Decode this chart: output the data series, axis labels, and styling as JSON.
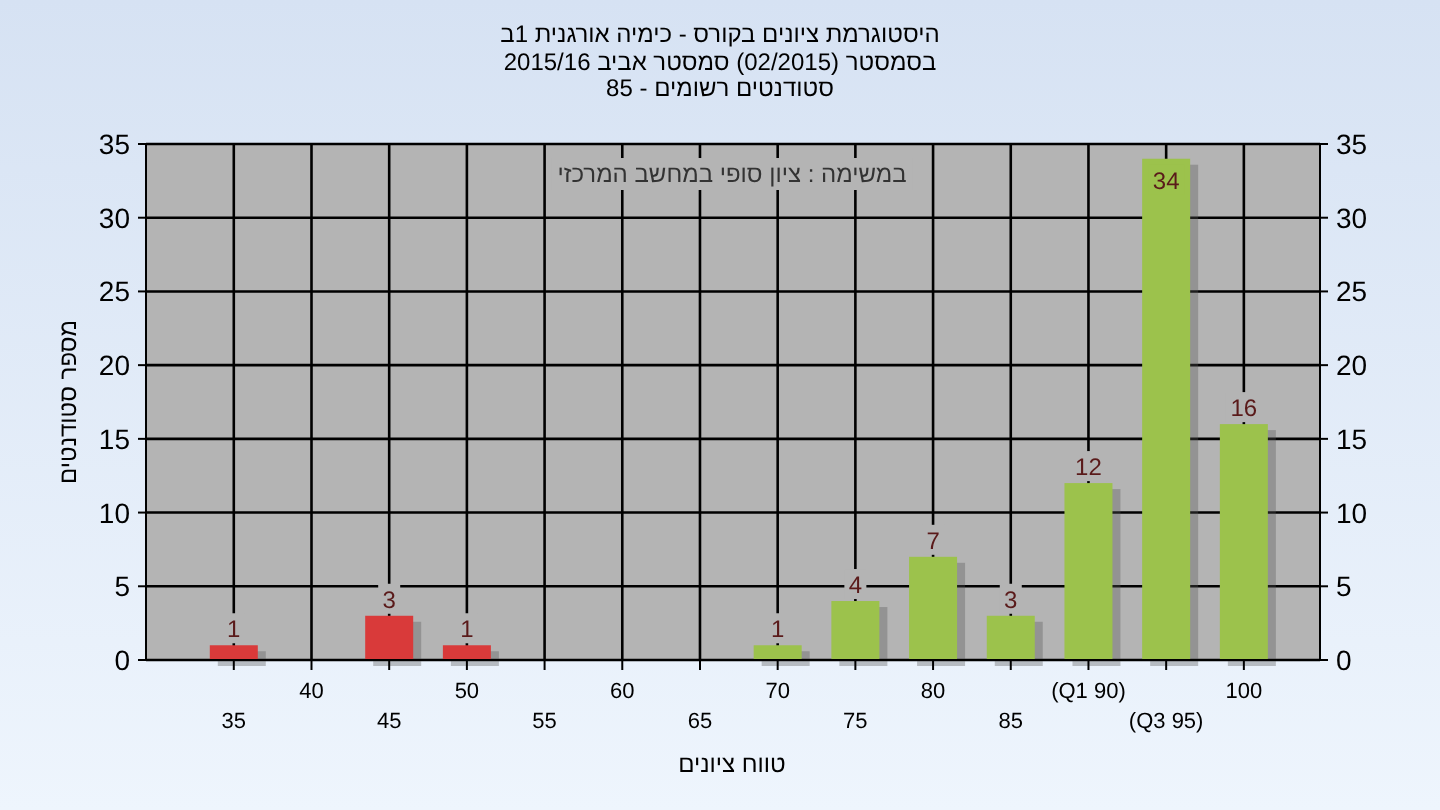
{
  "chart_data": {
    "type": "bar",
    "title": "היסטוגרמת ציונים בקורס - כימיה אורגנית 1ב",
    "subtitle": "בסמסטר  (02/2015)  סמסטר אביב 2015/16\nסטודנטים רשומים - 85",
    "xlabel": "טווח ציונים",
    "ylabel": "מספר סטודנטים",
    "categories": [
      "35",
      "40",
      "45",
      "50",
      "55",
      "60",
      "65",
      "70",
      "75",
      "80",
      "85",
      "(Q1 90)",
      "(Q3 95)",
      "100"
    ],
    "values": [
      1,
      0,
      3,
      1,
      0,
      0,
      0,
      1,
      4,
      7,
      3,
      12,
      34,
      16
    ],
    "colors": [
      "#d93a3a",
      "#d93a3a",
      "#d93a3a",
      "#d93a3a",
      "#9cc24c",
      "#9cc24c",
      "#9cc24c",
      "#9cc24c",
      "#9cc24c",
      "#9cc24c",
      "#9cc24c",
      "#9cc24c",
      "#9cc24c",
      "#9cc24c"
    ],
    "value_labels": [
      "1",
      null,
      "3",
      "1",
      null,
      null,
      null,
      "1",
      "4",
      "7",
      "3",
      "12",
      "34",
      "16"
    ],
    "ylim": [
      0,
      35
    ],
    "yticks": [
      0,
      5,
      10,
      15,
      20,
      25,
      30,
      35
    ],
    "y2lim": [
      0,
      35
    ],
    "y2ticks": [
      0,
      5,
      10,
      15,
      20,
      25,
      30,
      35
    ],
    "grid": true,
    "annotations": [
      "במשימה : ציון סופי במחשב המרכזי"
    ]
  }
}
